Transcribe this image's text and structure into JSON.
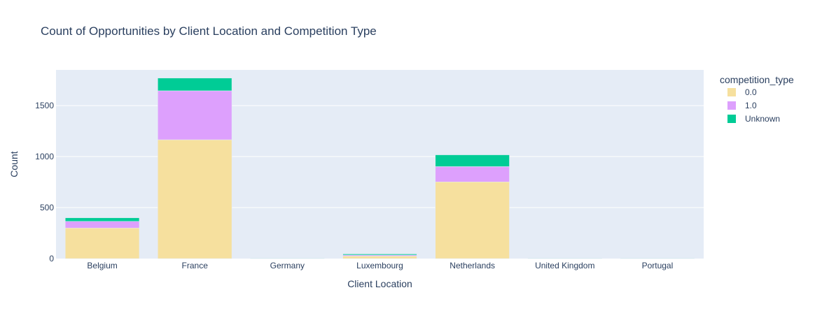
{
  "chart_data": {
    "type": "bar",
    "barmode": "stack",
    "title": "Count of Opportunities by Client Location and Competition Type",
    "xlabel": "Client Location",
    "ylabel": "Count",
    "categories": [
      "Belgium",
      "France",
      "Germany",
      "Luxembourg",
      "Netherlands",
      "United Kingdom",
      "Portugal"
    ],
    "ylim": [
      0,
      1850
    ],
    "yticks": [
      0,
      500,
      1000,
      1500
    ],
    "grid": true,
    "legend": {
      "title": "competition_type",
      "position": "right"
    },
    "series": [
      {
        "name": "0.0",
        "color": "#F6E09E",
        "values": [
          300,
          1165,
          2,
          25,
          752,
          2,
          2
        ]
      },
      {
        "name": "1.0",
        "color": "#DDA0FD",
        "values": [
          65,
          480,
          1,
          10,
          150,
          1,
          1
        ]
      },
      {
        "name": "Unknown",
        "color": "#00CC96",
        "values": [
          35,
          125,
          1,
          10,
          115,
          1,
          1
        ]
      }
    ]
  }
}
